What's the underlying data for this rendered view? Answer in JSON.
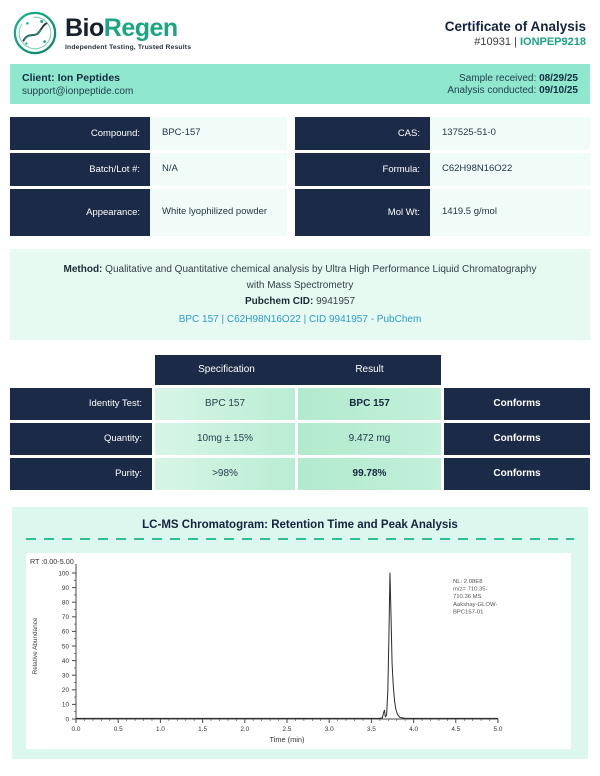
{
  "colors": {
    "navy": "#1b2a46",
    "teal_accent": "#1ba583",
    "mint_bar": "#8fe8ce",
    "mint_light": "#e6faf2",
    "mint_section": "#dcf7ed",
    "link_blue": "#2d9cc9",
    "dash_teal": "#2dbf97"
  },
  "header": {
    "brand_bio": "Bio",
    "brand_regen": "Regen",
    "tagline": "Independent Testing, Trusted Results",
    "title": "Certificate of Analysis",
    "cert_number": "#10931",
    "separator": "|",
    "product_code": "IONPEP9218"
  },
  "client_bar": {
    "client_line": "Client: Ion Peptides",
    "email": "support@ionpeptide.com",
    "sample_received_label": "Sample received:",
    "sample_received": "08/29/25",
    "analysis_conducted_label": "Analysis conducted:",
    "analysis_conducted": "09/10/25"
  },
  "compound_info": {
    "rows": [
      {
        "left_label": "Compound:",
        "left_value": "BPC-157",
        "right_label": "CAS:",
        "right_value": "137525-51-0"
      },
      {
        "left_label": "Batch/Lot #:",
        "left_value": "N/A",
        "right_label": "Formula:",
        "right_value": "C62H98N16O22"
      },
      {
        "left_label": "Appearance:",
        "left_value": "White lyophilized powder",
        "right_label": "Mol Wt:",
        "right_value": "1419.5 g/mol"
      }
    ]
  },
  "method": {
    "label": "Method:",
    "text": "Qualitative and Quantitative chemical analysis by Ultra High Performance Liquid Chromatography with Mass Spectrometry",
    "pubchem_label": "Pubchem CID:",
    "pubchem_cid": "9941957",
    "link": "BPC 157 | C62H98N16O22 | CID 9941957 - PubChem"
  },
  "results_table": {
    "spec_header": "Specification",
    "result_header": "Result",
    "rows": [
      {
        "label": "Identity Test:",
        "specification": "BPC 157",
        "result": "BPC 157",
        "status": "Conforms"
      },
      {
        "label": "Quantity:",
        "specification": "10mg ± 15%",
        "result": "9.472 mg",
        "status": "Conforms"
      },
      {
        "label": "Purity:",
        "specification": ">98%",
        "result": "99.78%",
        "status": "Conforms"
      }
    ]
  },
  "chromatogram_section": {
    "title": "LC-MS Chromatogram: Retention Time and Peak Analysis"
  },
  "chart_data": {
    "type": "line",
    "title": "LC-MS Chromatogram: Retention Time and Peak Analysis",
    "rt_range_label": "RT :0.00-5.00",
    "xlabel": "Time (min)",
    "ylabel": "Relative Abundance",
    "xlim": [
      0,
      5
    ],
    "ylim": [
      0,
      100
    ],
    "x_ticks": [
      0.0,
      0.5,
      1.0,
      1.5,
      2.0,
      2.5,
      3.0,
      3.5,
      4.0,
      4.5,
      5.0
    ],
    "x_tick_labels": [
      "0.0",
      "0.5",
      "1.0",
      "1.5",
      "2.0",
      "2.5",
      "3.0",
      "3.5",
      "4.0",
      "4.5",
      "5.0"
    ],
    "y_ticks": [
      0,
      10,
      20,
      30,
      40,
      50,
      60,
      70,
      80,
      90,
      100
    ],
    "y_tick_labels": [
      "0",
      "10",
      "20",
      "30",
      "40",
      "50",
      "60",
      "70",
      "80",
      "90",
      "100"
    ],
    "grid": false,
    "annotation": {
      "lines": [
        "NL: 2.08E8",
        "m/z= 710.35-",
        "710.36 MS",
        "Aakshay-GLOW-",
        "BPC157-01"
      ],
      "position": "top-right"
    },
    "peaks": [
      {
        "retention_time": 3.72,
        "relative_abundance": 100
      }
    ],
    "series": [
      {
        "name": "chromatogram",
        "x": [
          0,
          3.5,
          3.6,
          3.63,
          3.645,
          3.655,
          3.665,
          3.68,
          3.695,
          3.707,
          3.72,
          3.732,
          3.745,
          3.76,
          3.775,
          3.79,
          3.81,
          3.84,
          3.9,
          5.0
        ],
        "y": [
          0.4,
          0.4,
          0.5,
          0.8,
          4.5,
          6.0,
          1.5,
          2.5,
          20,
          55,
          100,
          72,
          38,
          22,
          12,
          6.5,
          3,
          1,
          0.4,
          0.4
        ]
      }
    ]
  }
}
